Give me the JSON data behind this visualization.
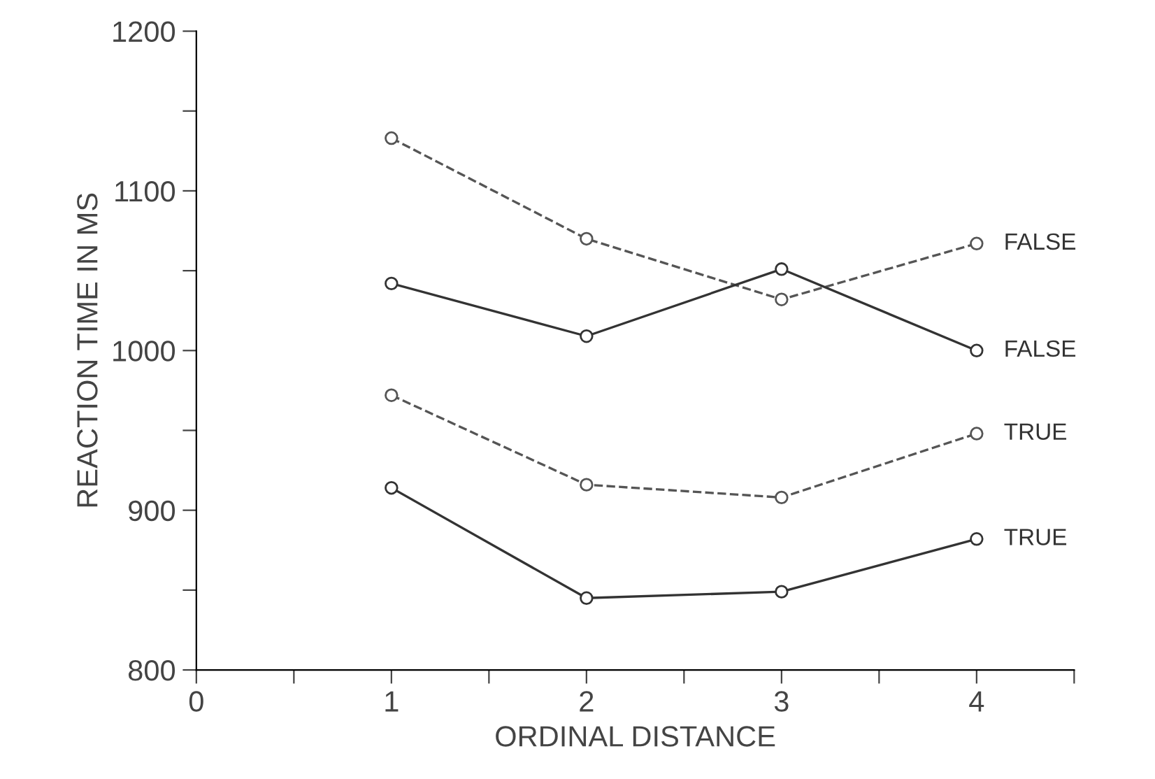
{
  "chart_data": {
    "type": "line",
    "xlabel": "ORDINAL DISTANCE",
    "ylabel": "REACTION TIME IN MS",
    "xlim": [
      0,
      4.5
    ],
    "xticks": [
      0,
      {
        "value": 0.5,
        "label": null
      },
      1,
      {
        "value": 1.5,
        "label": null
      },
      2,
      {
        "value": 2.5,
        "label": null
      },
      3,
      {
        "value": 3.5,
        "label": null
      },
      4,
      {
        "value": 4.5,
        "label": null
      }
    ],
    "ylim": [
      800,
      1200
    ],
    "yticks": [
      800,
      {
        "value": 850,
        "label": null
      },
      900,
      {
        "value": 950,
        "label": null
      },
      1000,
      {
        "value": 1050,
        "label": null
      },
      1100,
      {
        "value": 1150,
        "label": null
      },
      1200
    ],
    "marker": "circle",
    "grid": false,
    "legend": false,
    "series": [
      {
        "name": "FALSE",
        "color": "#555555",
        "line_style": "dashed",
        "x": [
          1,
          2,
          3,
          4
        ],
        "values": [
          1133,
          1070,
          1032,
          1067
        ]
      },
      {
        "name": "FALSE",
        "color": "#333333",
        "line_style": "solid",
        "x": [
          1,
          2,
          3,
          4
        ],
        "values": [
          1042,
          1009,
          1051,
          1000
        ]
      },
      {
        "name": "TRUE",
        "color": "#555555",
        "line_style": "dashed",
        "x": [
          1,
          2,
          3,
          4
        ],
        "values": [
          972,
          916,
          908,
          948
        ]
      },
      {
        "name": "TRUE",
        "color": "#333333",
        "line_style": "solid",
        "x": [
          1,
          2,
          3,
          4
        ],
        "values": [
          914,
          845,
          849,
          882
        ]
      }
    ]
  }
}
